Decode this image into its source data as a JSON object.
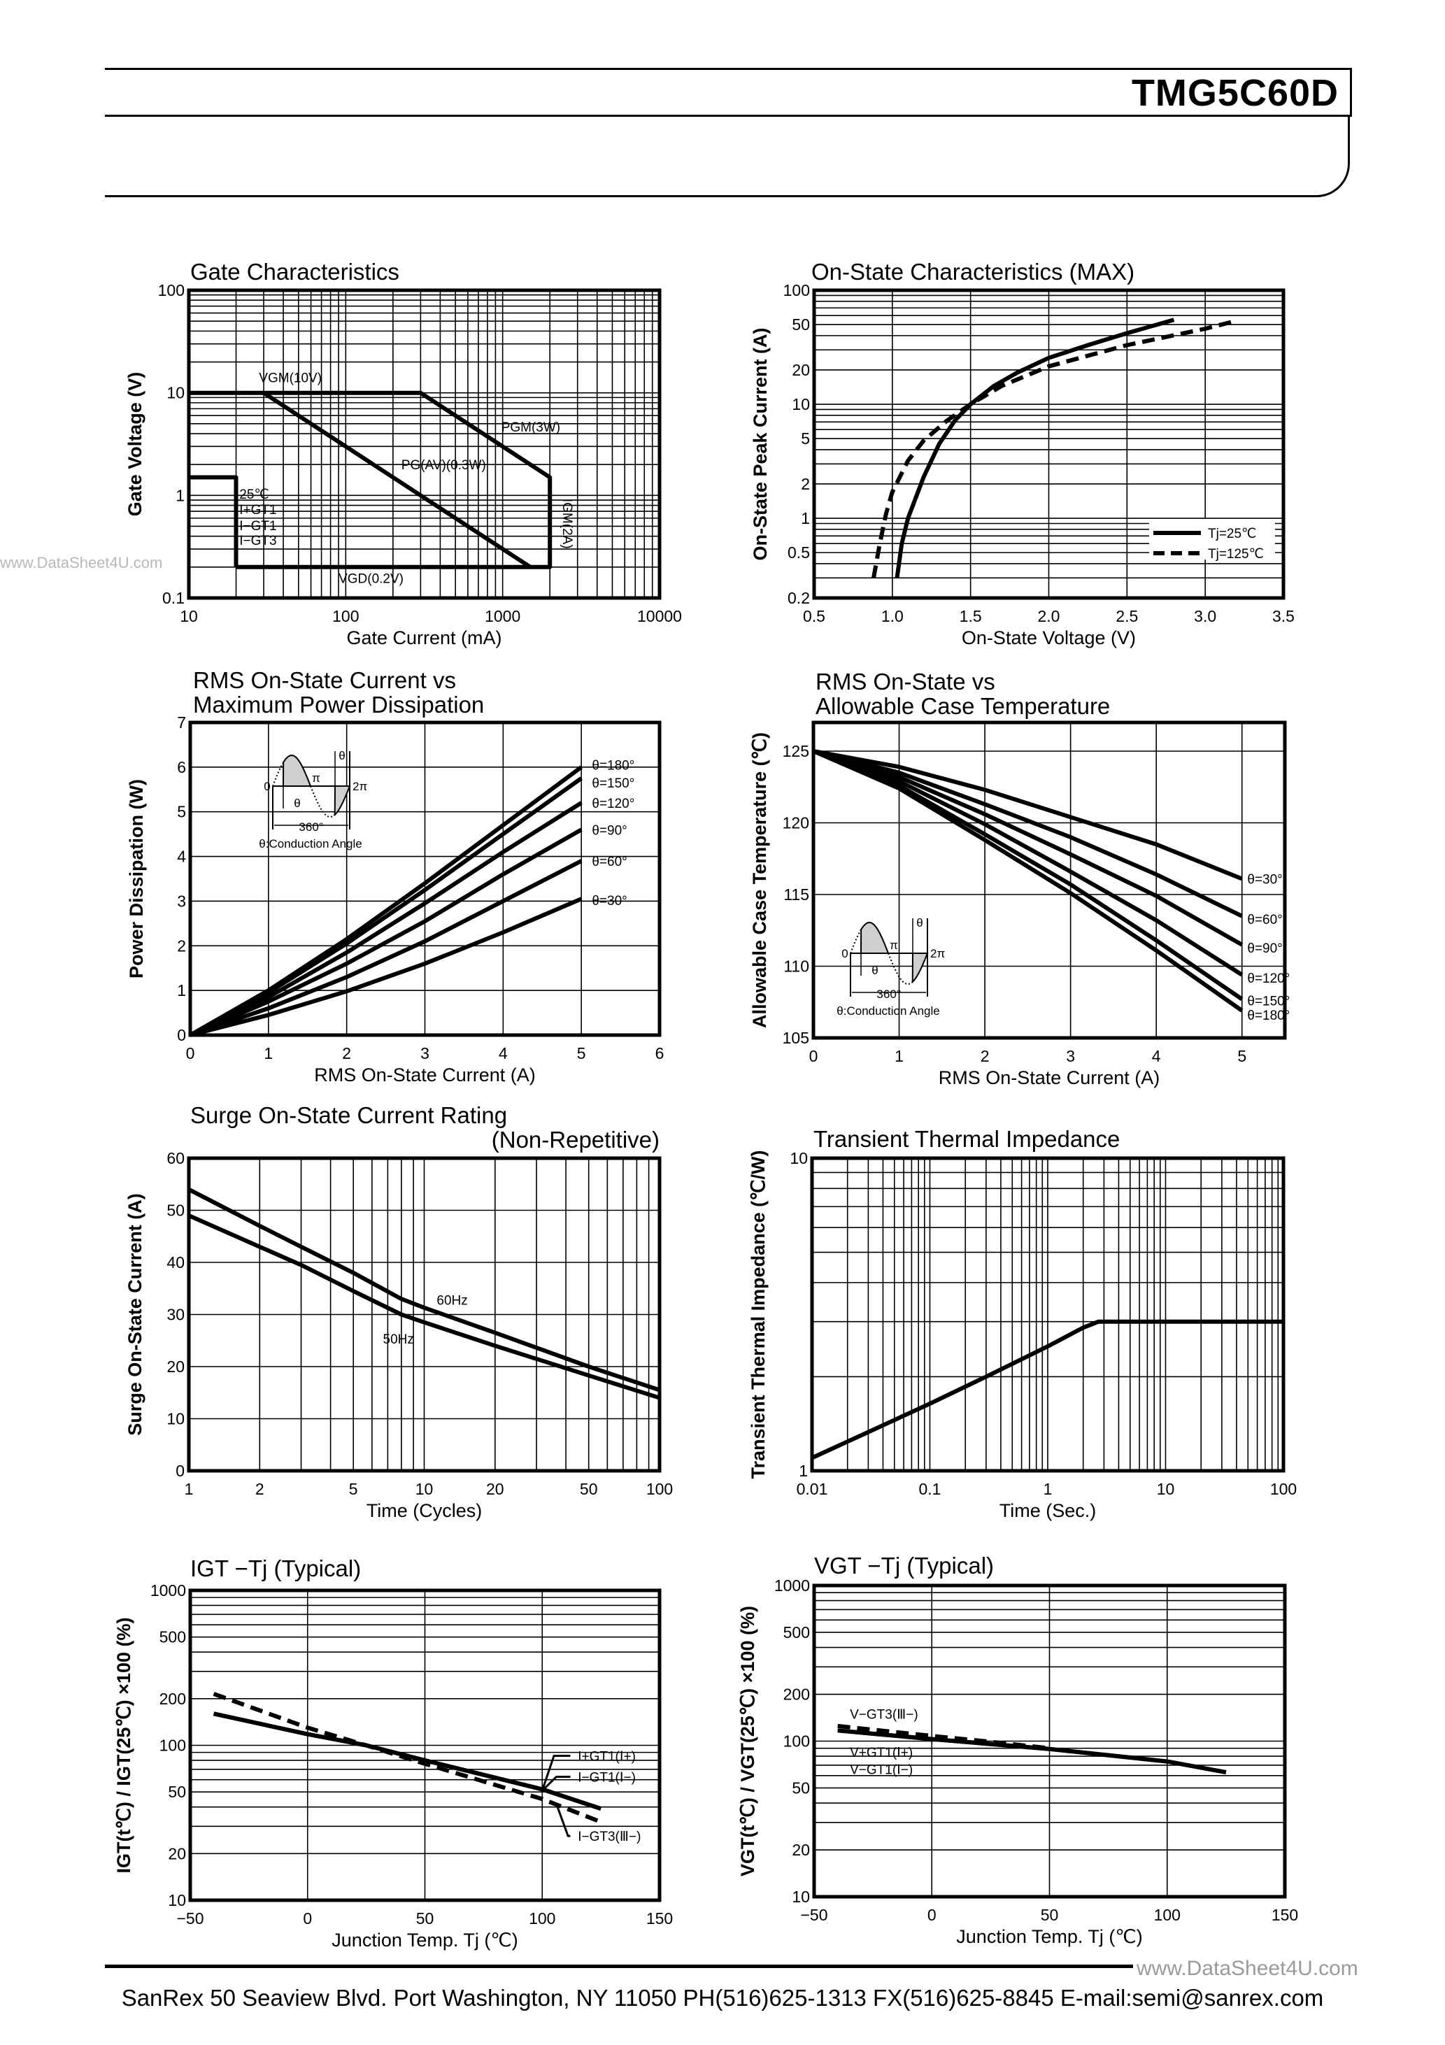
{
  "header": {
    "part_number": "TMG5C60D"
  },
  "watermarks": {
    "left": "www.DataSheet4U.com",
    "right": "www.DataSheet4U.com"
  },
  "footer": {
    "text": "SanRex 50 Seaview Blvd. Port Washington, NY 11050 PH(516)625-1313 FX(516)625-8845 E-mail:semi@sanrex.com"
  },
  "colors": {
    "ink": "#000000",
    "grid": "#000000",
    "watermark": "#b8b8b8"
  },
  "inset": {
    "zero": "0",
    "pi": "π",
    "two_pi": "2π",
    "theta": "θ",
    "full": "360°",
    "caption": "θ:Conduction Angle"
  },
  "chart_data": [
    {
      "type": "line",
      "title": [
        "Gate Characteristics"
      ],
      "xlabel": "Gate Current (mA)",
      "ylabel": "Gate Voltage (V)",
      "xscale": "log",
      "yscale": "log",
      "xlim": [
        10,
        10000
      ],
      "ylim": [
        0.1,
        100
      ],
      "xticks": [
        "10",
        "100",
        "1000",
        "10000"
      ],
      "yticks": [
        "0.1",
        "1",
        "10",
        "100"
      ],
      "grid": true,
      "series": [
        {
          "points": [
            [
              10,
              10
            ],
            [
              300,
              10
            ],
            [
              2000,
              1.5
            ],
            [
              2000,
              0.2
            ],
            [
              20,
              0.2
            ]
          ],
          "style": "solid"
        },
        {
          "points": [
            [
              10,
              1.5
            ],
            [
              20,
              1.5
            ],
            [
              20,
              0.2
            ]
          ],
          "style": "solid"
        },
        {
          "points": [
            [
              30,
              10
            ],
            [
              1500,
              0.2
            ]
          ],
          "style": "solid"
        }
      ],
      "annotations": [
        "VGM(10V)",
        "PGM(3W)",
        "PG(AV)(0.3W)",
        "VGD(0.2V)",
        "IGM(2A)",
        "25℃",
        "I+GT1",
        "I−GT1",
        "I−GT3"
      ]
    },
    {
      "type": "line",
      "title": [
        "On-State Characteristics (MAX)"
      ],
      "xlabel": "On-State Voltage (V)",
      "ylabel": "On-State Peak Current (A)",
      "xscale": "linear",
      "yscale": "log",
      "xlim": [
        0.5,
        3.5
      ],
      "ylim": [
        0.2,
        100
      ],
      "xticks": [
        "0.5",
        "1.0",
        "1.5",
        "2.0",
        "2.5",
        "3.0",
        "3.5"
      ],
      "yticks": [
        "0.2",
        "0.5",
        "1",
        "2",
        "5",
        "10",
        "20",
        "50",
        "100"
      ],
      "grid": true,
      "legend": "bottom-right",
      "series": [
        {
          "name": "Tj=25℃",
          "style": "solid",
          "points": [
            [
              1.03,
              0.3
            ],
            [
              1.06,
              0.6
            ],
            [
              1.1,
              1
            ],
            [
              1.2,
              2.3
            ],
            [
              1.3,
              4.5
            ],
            [
              1.4,
              7.2
            ],
            [
              1.5,
              10
            ],
            [
              1.65,
              14.5
            ],
            [
              1.8,
              19
            ],
            [
              2.0,
              25.5
            ],
            [
              2.25,
              33
            ],
            [
              2.5,
              42
            ],
            [
              2.8,
              55
            ]
          ]
        },
        {
          "name": "Tj=125℃",
          "style": "dashed",
          "points": [
            [
              0.88,
              0.3
            ],
            [
              0.92,
              0.6
            ],
            [
              0.96,
              1.1
            ],
            [
              1.0,
              1.7
            ],
            [
              1.1,
              3.2
            ],
            [
              1.2,
              4.8
            ],
            [
              1.35,
              7.2
            ],
            [
              1.5,
              10
            ],
            [
              1.7,
              14.5
            ],
            [
              2.0,
              21.5
            ],
            [
              2.5,
              33
            ],
            [
              3.0,
              46
            ],
            [
              3.2,
              54
            ]
          ]
        }
      ]
    },
    {
      "type": "line",
      "title": [
        "RMS On-State Current vs",
        "Maximum Power Dissipation"
      ],
      "xlabel": "RMS On-State Current (A)",
      "ylabel": "Power Dissipation (W)",
      "xscale": "linear",
      "yscale": "linear",
      "xlim": [
        0,
        6
      ],
      "ylim": [
        0,
        7
      ],
      "xticks": [
        "0",
        "1",
        "2",
        "3",
        "4",
        "5",
        "6"
      ],
      "yticks": [
        "0",
        "1",
        "2",
        "3",
        "4",
        "5",
        "6",
        "7"
      ],
      "grid": true,
      "series": [
        {
          "name": "θ=180°",
          "style": "solid",
          "points": [
            [
              0,
              0
            ],
            [
              1,
              1.0
            ],
            [
              2,
              2.15
            ],
            [
              3,
              3.4
            ],
            [
              4,
              4.7
            ],
            [
              5,
              6.0
            ]
          ]
        },
        {
          "name": "θ=150°",
          "style": "solid",
          "points": [
            [
              0,
              0
            ],
            [
              1,
              0.95
            ],
            [
              2,
              2.05
            ],
            [
              3,
              3.25
            ],
            [
              4,
              4.5
            ],
            [
              5,
              5.75
            ]
          ]
        },
        {
          "name": "θ=120°",
          "style": "solid",
          "points": [
            [
              0,
              0
            ],
            [
              1,
              0.85
            ],
            [
              2,
              1.85
            ],
            [
              3,
              2.95
            ],
            [
              4,
              4.1
            ],
            [
              5,
              5.2
            ]
          ]
        },
        {
          "name": "θ=90°",
          "style": "solid",
          "points": [
            [
              0,
              0
            ],
            [
              1,
              0.75
            ],
            [
              2,
              1.6
            ],
            [
              3,
              2.55
            ],
            [
              4,
              3.6
            ],
            [
              5,
              4.6
            ]
          ]
        },
        {
          "name": "θ=60°",
          "style": "solid",
          "points": [
            [
              0,
              0
            ],
            [
              1,
              0.6
            ],
            [
              2,
              1.3
            ],
            [
              3,
              2.1
            ],
            [
              4,
              3.0
            ],
            [
              5,
              3.9
            ]
          ]
        },
        {
          "name": "θ=30°",
          "style": "solid",
          "points": [
            [
              0,
              0
            ],
            [
              1,
              0.45
            ],
            [
              2,
              0.98
            ],
            [
              3,
              1.6
            ],
            [
              4,
              2.3
            ],
            [
              5,
              3.05
            ]
          ]
        }
      ]
    },
    {
      "type": "line",
      "title": [
        "RMS On-State vs",
        "Allowable Case Temperature"
      ],
      "xlabel": "RMS On-State Current (A)",
      "ylabel": "Allowable Case Temperature (℃)",
      "xscale": "linear",
      "yscale": "linear",
      "xlim": [
        0,
        5.5
      ],
      "ylim": [
        105,
        127
      ],
      "xticks": [
        "0",
        "1",
        "2",
        "3",
        "4",
        "5"
      ],
      "yticks": [
        "105",
        "110",
        "115",
        "120",
        "125"
      ],
      "grid": true,
      "series": [
        {
          "name": "θ=30°",
          "style": "solid",
          "points": [
            [
              0,
              125
            ],
            [
              1,
              123.9
            ],
            [
              2,
              122.3
            ],
            [
              3,
              120.4
            ],
            [
              4,
              118.5
            ],
            [
              5,
              116.1
            ]
          ]
        },
        {
          "name": "θ=60°",
          "style": "solid",
          "points": [
            [
              0,
              125
            ],
            [
              1,
              123.5
            ],
            [
              2,
              121.3
            ],
            [
              3,
              119.0
            ],
            [
              4,
              116.4
            ],
            [
              5,
              113.5
            ]
          ]
        },
        {
          "name": "θ=90°",
          "style": "solid",
          "points": [
            [
              0,
              125
            ],
            [
              1,
              123.2
            ],
            [
              2,
              120.6
            ],
            [
              3,
              117.8
            ],
            [
              4,
              114.9
            ],
            [
              5,
              111.5
            ]
          ]
        },
        {
          "name": "θ=120°",
          "style": "solid",
          "points": [
            [
              0,
              125
            ],
            [
              1,
              122.9
            ],
            [
              2,
              119.9
            ],
            [
              3,
              116.6
            ],
            [
              4,
              113.2
            ],
            [
              5,
              109.4
            ]
          ]
        },
        {
          "name": "θ=150°",
          "style": "solid",
          "points": [
            [
              0,
              125
            ],
            [
              1,
              122.6
            ],
            [
              2,
              119.2
            ],
            [
              3,
              115.7
            ],
            [
              4,
              111.8
            ],
            [
              5,
              107.7
            ]
          ]
        },
        {
          "name": "θ=180°",
          "style": "solid",
          "points": [
            [
              0,
              125
            ],
            [
              1,
              122.4
            ],
            [
              2,
              118.8
            ],
            [
              3,
              115.1
            ],
            [
              4,
              111.1
            ],
            [
              5,
              106.9
            ]
          ]
        }
      ]
    },
    {
      "type": "line",
      "title": [
        "Surge On-State Current Rating",
        "(Non-Repetitive)"
      ],
      "xlabel": "Time (Cycles)",
      "ylabel": "Surge On-State Current (A)",
      "xscale": "log",
      "yscale": "linear",
      "xlim": [
        1,
        100
      ],
      "ylim": [
        0,
        60
      ],
      "xticks": [
        "1",
        "2",
        "5",
        "10",
        "20",
        "50",
        "100"
      ],
      "yticks": [
        "0",
        "10",
        "20",
        "30",
        "40",
        "50",
        "60"
      ],
      "grid": true,
      "series": [
        {
          "name": "60Hz",
          "style": "solid",
          "points": [
            [
              1,
              54
            ],
            [
              2,
              47
            ],
            [
              3,
              43
            ],
            [
              5,
              38
            ],
            [
              8,
              33
            ],
            [
              10,
              31.3
            ],
            [
              20,
              26.5
            ],
            [
              50,
              20
            ],
            [
              100,
              15.5
            ]
          ]
        },
        {
          "name": "50Hz",
          "style": "solid",
          "points": [
            [
              1,
              49
            ],
            [
              2,
              43
            ],
            [
              3,
              39.5
            ],
            [
              5,
              34.5
            ],
            [
              8,
              30
            ],
            [
              10,
              28.5
            ],
            [
              20,
              24
            ],
            [
              50,
              18.3
            ],
            [
              100,
              14
            ]
          ]
        }
      ]
    },
    {
      "type": "line",
      "title": [
        "Transient Thermal Impedance"
      ],
      "xlabel": "Time (Sec.)",
      "ylabel": "Transient Thermal Impedance (℃/W)",
      "xscale": "log",
      "yscale": "log",
      "xlim": [
        0.01,
        100
      ],
      "ylim": [
        1,
        10
      ],
      "xticks": [
        "0.01",
        "0.1",
        "1",
        "10",
        "100"
      ],
      "yticks": [
        "1",
        "10"
      ],
      "grid": true,
      "series": [
        {
          "style": "solid",
          "points": [
            [
              0.01,
              1.1
            ],
            [
              0.03,
              1.33
            ],
            [
              0.1,
              1.64
            ],
            [
              0.3,
              2.0
            ],
            [
              1,
              2.5
            ],
            [
              2,
              2.87
            ],
            [
              2.7,
              3.0
            ],
            [
              100,
              3.0
            ]
          ]
        }
      ]
    },
    {
      "type": "line",
      "title": [
        "IGT −Tj (Typical)"
      ],
      "xlabel": "Junction Temp. Tj (℃)",
      "ylabel": "IGT(t℃) / IGT(25℃) ×100 (%)",
      "xscale": "linear",
      "yscale": "log",
      "xlim": [
        -50,
        150
      ],
      "ylim": [
        10,
        1000
      ],
      "xticks": [
        "−50",
        "0",
        "50",
        "100",
        "150"
      ],
      "yticks": [
        "10",
        "20",
        "50",
        "100",
        "200",
        "500",
        "1000"
      ],
      "grid": true,
      "series": [
        {
          "name": "I+GT1(Ⅰ+)",
          "style": "solid",
          "points": [
            [
              -40,
              160
            ],
            [
              0,
              118
            ],
            [
              25,
              100
            ],
            [
              50,
              80
            ],
            [
              100,
              52
            ],
            [
              125,
              39
            ]
          ]
        },
        {
          "name": "I−GT1(Ⅰ−)",
          "style": "solid",
          "points": [
            [
              -40,
              160
            ],
            [
              0,
              118
            ],
            [
              25,
              100
            ],
            [
              50,
              80
            ],
            [
              100,
              52
            ],
            [
              125,
              39
            ]
          ]
        },
        {
          "name": "I−GT3(Ⅲ−)",
          "style": "dashed",
          "points": [
            [
              -40,
              215
            ],
            [
              0,
              130
            ],
            [
              25,
              100
            ],
            [
              50,
              76
            ],
            [
              100,
              45
            ],
            [
              125,
              32
            ]
          ]
        }
      ]
    },
    {
      "type": "line",
      "title": [
        "VGT −Tj (Typical)"
      ],
      "xlabel": "Junction Temp. Tj (℃)",
      "ylabel": "VGT(t℃) / VGT(25℃) ×100 (%)",
      "xscale": "linear",
      "yscale": "log",
      "xlim": [
        -50,
        150
      ],
      "ylim": [
        10,
        1000
      ],
      "xticks": [
        "−50",
        "0",
        "50",
        "100",
        "150"
      ],
      "yticks": [
        "10",
        "20",
        "50",
        "100",
        "200",
        "500",
        "1000"
      ],
      "grid": true,
      "series": [
        {
          "name": "V−GT3(Ⅲ−)",
          "style": "dashed",
          "points": [
            [
              -40,
              125
            ],
            [
              0,
              108
            ],
            [
              25,
              99
            ],
            [
              50,
              90
            ]
          ]
        },
        {
          "name": "V+GT1(Ⅰ+)",
          "style": "solid",
          "points": [
            [
              -40,
              117
            ],
            [
              0,
              103
            ],
            [
              50,
              89
            ],
            [
              100,
              74
            ],
            [
              125,
              63
            ]
          ]
        },
        {
          "name": "V−GT1(Ⅰ−)",
          "style": "solid",
          "points": [
            [
              -40,
              117
            ],
            [
              0,
              103
            ],
            [
              50,
              89
            ],
            [
              100,
              74
            ],
            [
              125,
              63
            ]
          ]
        }
      ]
    }
  ]
}
